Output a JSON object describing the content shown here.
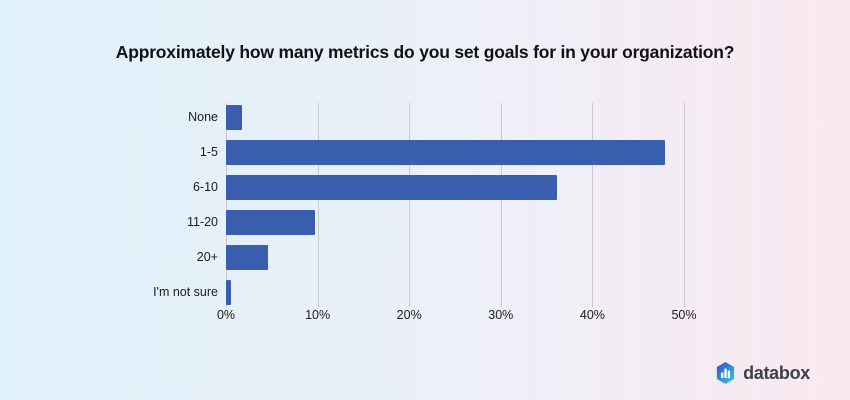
{
  "title": "Approximately how many metrics do you set goals for in your organization?",
  "chart_data": {
    "type": "bar",
    "orientation": "horizontal",
    "title": "Approximately how many metrics do you set goals for in your organization?",
    "categories": [
      "None",
      "1-5",
      "6-10",
      "11-20",
      "20+",
      "I'm not sure"
    ],
    "values": [
      1.8,
      47.9,
      36.1,
      9.7,
      4.6,
      0.5
    ],
    "xlabel": "",
    "ylabel": "",
    "xlim": [
      0,
      50
    ],
    "x_tick_values": [
      0,
      10,
      20,
      30,
      40,
      50
    ],
    "x_tick_labels": [
      "0%",
      "10%",
      "20%",
      "30%",
      "40%",
      "50%"
    ],
    "grid": true,
    "legend": false,
    "bar_color": "#3a5eae",
    "gridline_color": "#c7c9d1"
  },
  "background": {
    "gradient_left": "#dff1fa",
    "gradient_right": "#fbe9f0"
  },
  "branding": {
    "logo_text": "databox",
    "logo_icon": "databox-hexagon-bar-chart-icon",
    "icon_gradient_top": "#3b50c1",
    "icon_gradient_bottom": "#33cdee",
    "text_color": "#3d4249"
  }
}
